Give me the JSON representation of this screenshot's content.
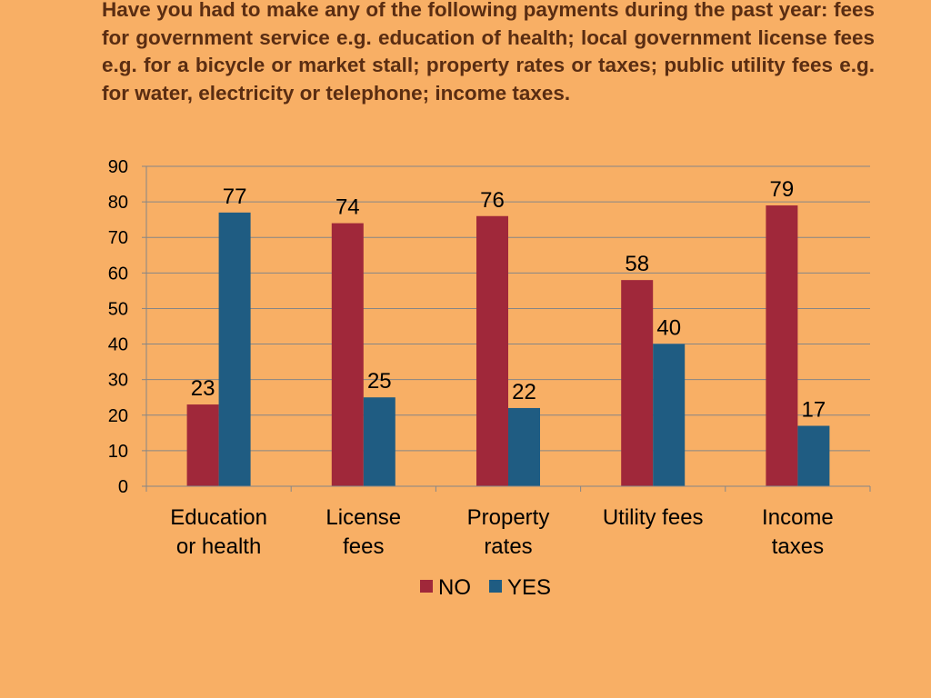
{
  "question": "Have you had to make any of the following payments during the past year: fees for government service e.g. education of health; local government license fees e.g. for a bicycle or market stall; property rates or taxes; public utility fees e.g. for water, electricity or telephone; income taxes.",
  "chart_data": {
    "type": "bar",
    "categories": [
      [
        "Education",
        "or health"
      ],
      [
        "License",
        "fees"
      ],
      [
        "Property",
        "rates"
      ],
      [
        "Utility fees"
      ],
      [
        "Income",
        "taxes"
      ]
    ],
    "series": [
      {
        "name": "NO",
        "color": "#A0283A",
        "values": [
          23,
          74,
          76,
          58,
          79
        ]
      },
      {
        "name": "YES",
        "color": "#1F5C82",
        "values": [
          77,
          25,
          22,
          40,
          17
        ]
      }
    ],
    "ylim": [
      0,
      90
    ],
    "ytick_step": 10,
    "grid": true,
    "legend": "bottom",
    "data_labels": true
  }
}
